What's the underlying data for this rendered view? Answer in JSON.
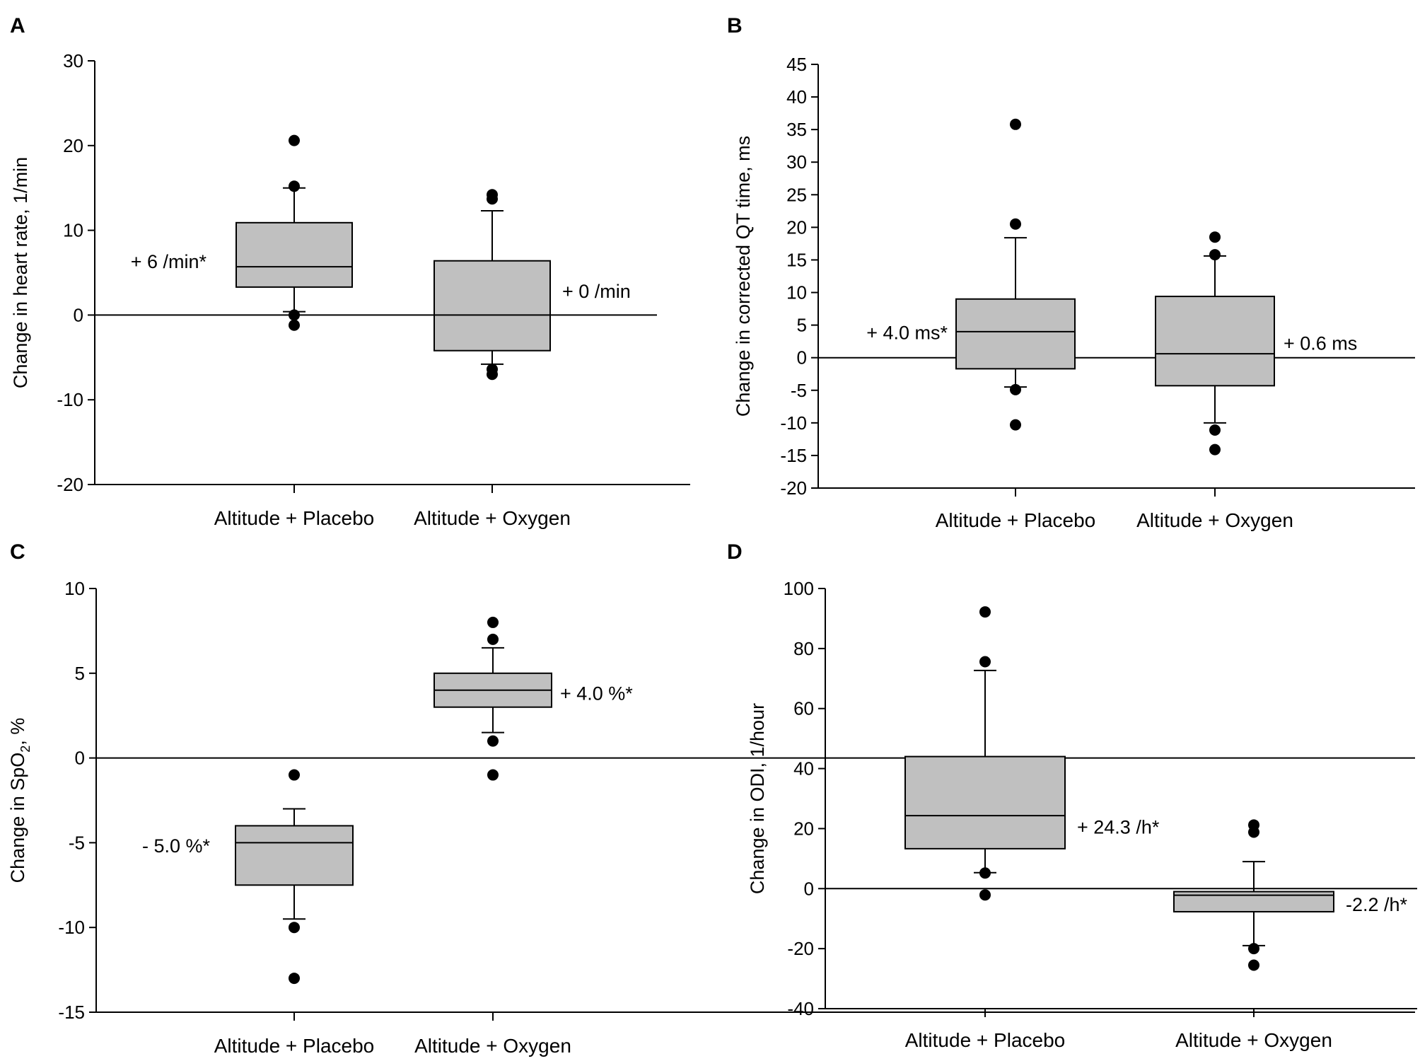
{
  "chart_data": [
    {
      "panel": "A",
      "type": "box",
      "ylabel": "Change in heart rate, 1/min",
      "ylim": [
        -20,
        30
      ],
      "yticks": [
        -20,
        -10,
        0,
        10,
        20,
        30
      ],
      "reference_line": 0,
      "categories": [
        "Altitude + Placebo",
        "Altitude + Oxygen"
      ],
      "boxes": [
        {
          "q1": 3.3,
          "median": 5.7,
          "q3": 10.9,
          "whisker_low": 0.4,
          "whisker_high": 15.0,
          "outliers": [
            20.6,
            15.2,
            0.0,
            -1.2
          ],
          "annotation": "+ 6 /min*"
        },
        {
          "q1": -4.2,
          "median": 0.0,
          "q3": 6.4,
          "whisker_low": -5.8,
          "whisker_high": 12.3,
          "outliers": [
            14.2,
            13.7,
            -6.4,
            -7.0
          ],
          "annotation": "+ 0 /min"
        }
      ]
    },
    {
      "panel": "B",
      "type": "box",
      "ylabel": "Change in corrected QT time, ms",
      "ylim": [
        -20,
        45
      ],
      "yticks": [
        -20,
        -15,
        -10,
        -5,
        0,
        5,
        10,
        15,
        20,
        25,
        30,
        35,
        40,
        45
      ],
      "reference_line": 0,
      "categories": [
        "Altitude + Placebo",
        "Altitude + Oxygen"
      ],
      "boxes": [
        {
          "q1": -1.7,
          "median": 4.0,
          "q3": 9.0,
          "whisker_low": -4.5,
          "whisker_high": 18.4,
          "outliers": [
            35.8,
            20.5,
            -4.9,
            -10.3
          ],
          "annotation": "+ 4.0 ms*"
        },
        {
          "q1": -4.3,
          "median": 0.6,
          "q3": 9.4,
          "whisker_low": -10.0,
          "whisker_high": 15.6,
          "outliers": [
            18.5,
            15.8,
            -11.1,
            -14.1
          ],
          "annotation": "+ 0.6 ms"
        }
      ]
    },
    {
      "panel": "C",
      "type": "box",
      "ylabel": "Change in SpO",
      "ylabel_sub": "2",
      "ylabel_suffix": ", %",
      "ylim": [
        -15,
        10
      ],
      "yticks": [
        -15,
        -10,
        -5,
        0,
        5,
        10
      ],
      "reference_line": 0,
      "categories": [
        "Altitude + Placebo",
        "Altitude + Oxygen"
      ],
      "boxes": [
        {
          "q1": -7.5,
          "median": -5.0,
          "q3": -4.0,
          "whisker_low": -9.5,
          "whisker_high": -3.0,
          "outliers": [
            -1.0,
            -10.0,
            -13.0
          ],
          "annotation": "- 5.0 %*"
        },
        {
          "q1": 3.0,
          "median": 4.0,
          "q3": 5.0,
          "whisker_low": 1.5,
          "whisker_high": 6.5,
          "outliers": [
            8.0,
            7.0,
            1.0,
            -1.0
          ],
          "annotation": "+ 4.0 %*"
        }
      ]
    },
    {
      "panel": "D",
      "type": "box",
      "ylabel": "Change in ODI, 1/hour",
      "ylim": [
        -40,
        100
      ],
      "yticks": [
        -40,
        -20,
        0,
        20,
        40,
        60,
        80,
        100
      ],
      "reference_line": 0,
      "categories": [
        "Altitude + Placebo",
        "Altitude + Oxygen"
      ],
      "boxes": [
        {
          "q1": 13.3,
          "median": 24.3,
          "q3": 44.0,
          "whisker_low": 5.3,
          "whisker_high": 72.7,
          "outliers": [
            92.2,
            75.6,
            5.2,
            -2.1
          ],
          "annotation": "+ 24.3 /h*"
        },
        {
          "q1": -7.7,
          "median": -2.2,
          "q3": -1.0,
          "whisker_low": -19.0,
          "whisker_high": 9.0,
          "outliers": [
            21.2,
            18.8,
            -20.0,
            -25.5
          ],
          "annotation": "-2.2 /h*"
        }
      ]
    }
  ],
  "colors": {
    "box_fill": "#c0c0c0",
    "ink": "#000000"
  }
}
